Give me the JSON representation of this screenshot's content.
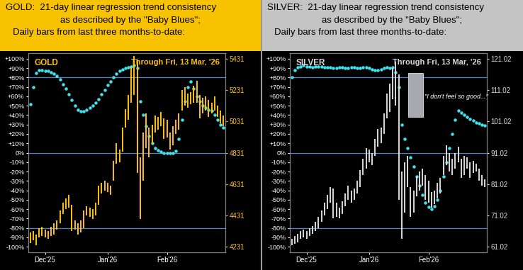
{
  "chart_data": [
    {
      "type": "bar",
      "title": "GOLD:  21-day linear regression trend consistency\nas described by the \"Baby Blues\";\nDaily bars from last three months-to-date:",
      "subtitle": "Through Fri, 13 Mar, '26",
      "annotations": [
        {
          "text": "GOLD"
        }
      ],
      "color": "#F7C300",
      "grid": false,
      "categories": [
        null,
        null,
        null,
        null,
        null,
        "Dec'25",
        null,
        null,
        null,
        null,
        null,
        null,
        null,
        null,
        null,
        null,
        null,
        null,
        null,
        null,
        null,
        null,
        null,
        null,
        null,
        null,
        "Jan'26",
        null,
        null,
        null,
        null,
        null,
        null,
        null,
        null,
        null,
        null,
        null,
        null,
        null,
        null,
        null,
        null,
        null,
        null,
        null,
        "Feb'26",
        null,
        null,
        null,
        null,
        null,
        null,
        null,
        null,
        null,
        null,
        null,
        null,
        null,
        null,
        null,
        null,
        null,
        null,
        null
      ],
      "ylim": [
        -106,
        106
      ],
      "yticks": [
        {
          "value": 100,
          "label": "+100%"
        },
        {
          "value": 90,
          "label": "+90%"
        },
        {
          "value": 80,
          "label": "+80%"
        },
        {
          "value": 70,
          "label": "+70%"
        },
        {
          "value": 60,
          "label": "+60%"
        },
        {
          "value": 50,
          "label": "+50%"
        },
        {
          "value": 40,
          "label": "+40%"
        },
        {
          "value": 30,
          "label": "+30%"
        },
        {
          "value": 20,
          "label": "+20%"
        },
        {
          "value": 10,
          "label": "+10%"
        },
        {
          "value": 0,
          "label": "0%"
        },
        {
          "value": -10,
          "label": "-10%"
        },
        {
          "value": -20,
          "label": "-20%"
        },
        {
          "value": -30,
          "label": "-30%"
        },
        {
          "value": -40,
          "label": "-40%"
        },
        {
          "value": -50,
          "label": "-50%"
        },
        {
          "value": -60,
          "label": "-60%"
        },
        {
          "value": -70,
          "label": "-70%"
        },
        {
          "value": -80,
          "label": "-80%"
        },
        {
          "value": -90,
          "label": "-90%"
        },
        {
          "value": -100,
          "label": "-100%"
        }
      ],
      "y2lim": [
        4195,
        5467
      ],
      "y2ticks": [
        4231,
        4431,
        4631,
        4831,
        5031,
        5231,
        5431
      ],
      "reference_lines": [
        80,
        0,
        -80
      ],
      "series": [
        {
          "type": "range_bar",
          "axis": "y2",
          "color": "#FFC20E",
          "low": [
            4255,
            4270,
            4240,
            4290,
            4300,
            4290,
            4280,
            4300,
            4310,
            4340,
            4380,
            4440,
            4470,
            4480,
            4330,
            4340,
            4310,
            4320,
            4350,
            4430,
            4420,
            4410,
            4430,
            4500,
            4570,
            4590,
            4580,
            4560,
            4650,
            4760,
            4770,
            4840,
            4990,
            5040,
            5150,
            5200,
            4700,
            4410,
            4650,
            4860,
            4800,
            4890,
            4960,
            4980,
            5000,
            4920,
            4930,
            4850,
            4880,
            4950,
            4980,
            5100,
            5130,
            5120,
            5140,
            5150,
            5150,
            5050,
            5080,
            5100,
            5060,
            5080,
            5100,
            5060,
            5020,
            5000
          ],
          "high": [
            4320,
            4330,
            4310,
            4350,
            4360,
            4340,
            4330,
            4360,
            4380,
            4400,
            4460,
            4510,
            4540,
            4560,
            4500,
            4400,
            4380,
            4400,
            4460,
            4490,
            4480,
            4470,
            4510,
            4620,
            4640,
            4650,
            4640,
            4620,
            4780,
            4890,
            4850,
            4990,
            5110,
            5200,
            5380,
            5450,
            5420,
            4800,
            4960,
            5080,
            4990,
            5010,
            5070,
            5060,
            5090,
            5050,
            5040,
            4960,
            5000,
            5040,
            5080,
            5230,
            5250,
            5210,
            5220,
            5260,
            5290,
            5200,
            5180,
            5190,
            5170,
            5150,
            5190,
            5130,
            5100,
            5070
          ]
        },
        {
          "type": "scatter",
          "color": "#3FE3F0",
          "values": [
            52,
            70,
            85,
            88,
            88,
            87,
            87,
            86,
            84,
            82,
            78,
            73,
            68,
            62,
            56,
            50,
            46,
            44,
            44,
            46,
            48,
            50,
            53,
            57,
            62,
            67,
            72,
            76,
            80,
            84,
            87,
            89,
            90,
            91,
            92,
            93,
            90,
            55,
            40,
            28,
            18,
            10,
            5,
            3,
            1,
            0,
            0,
            0,
            0,
            2,
            15,
            35,
            55,
            70,
            76,
            68,
            60,
            55,
            50,
            48,
            46,
            45,
            40,
            35,
            30,
            27
          ]
        }
      ]
    },
    {
      "type": "bar",
      "title": "SILVER:  21-day linear regression trend consistency\nas described by the \"Baby Blues\";\nDaily bars from last three months-to-date:",
      "subtitle": "Through Fri, 13 Mar, '26",
      "annotations": [
        {
          "text": "SILVER"
        },
        {
          "text": "\"I don't feel so good...\""
        }
      ],
      "color": "#C4C4C4",
      "grid": false,
      "categories": [
        null,
        null,
        null,
        null,
        null,
        "Dec'25",
        null,
        null,
        null,
        null,
        null,
        null,
        null,
        null,
        null,
        null,
        null,
        null,
        null,
        null,
        null,
        null,
        null,
        null,
        null,
        null,
        "Jan'26",
        null,
        null,
        null,
        null,
        null,
        null,
        null,
        null,
        null,
        null,
        null,
        null,
        null,
        null,
        null,
        null,
        null,
        null,
        null,
        "Feb'26",
        null,
        null,
        null,
        null,
        null,
        null,
        null,
        null,
        null,
        null,
        null,
        null,
        null,
        null,
        null,
        null,
        null,
        null,
        null
      ],
      "ylim": [
        -106,
        106
      ],
      "yticks": [
        {
          "value": 100,
          "label": "+100%"
        },
        {
          "value": 90,
          "label": "+90%"
        },
        {
          "value": 80,
          "label": "+80%"
        },
        {
          "value": 70,
          "label": "+70%"
        },
        {
          "value": 60,
          "label": "+60%"
        },
        {
          "value": 50,
          "label": "+50%"
        },
        {
          "value": 40,
          "label": "+40%"
        },
        {
          "value": 30,
          "label": "+30%"
        },
        {
          "value": 20,
          "label": "+20%"
        },
        {
          "value": 10,
          "label": "+10%"
        },
        {
          "value": 0,
          "label": "0%"
        },
        {
          "value": -10,
          "label": "-10%"
        },
        {
          "value": -20,
          "label": "-20%"
        },
        {
          "value": -30,
          "label": "-30%"
        },
        {
          "value": -40,
          "label": "-40%"
        },
        {
          "value": -50,
          "label": "-50%"
        },
        {
          "value": -60,
          "label": "-60%"
        },
        {
          "value": -70,
          "label": "-70%"
        },
        {
          "value": -80,
          "label": "-80%"
        },
        {
          "value": -90,
          "label": "-90%"
        },
        {
          "value": -100,
          "label": "-100%"
        }
      ],
      "y2lim": [
        59.22,
        122.82
      ],
      "y2ticks": [
        61.02,
        71.02,
        81.02,
        91.02,
        101.02,
        111.02,
        121.02
      ],
      "reference_lines": [
        80,
        0,
        -80
      ],
      "series": [
        {
          "type": "range_bar",
          "axis": "y2",
          "color": "#D9D9D9",
          "low": [
            61.5,
            62.0,
            62.5,
            63.5,
            64.0,
            63.5,
            64.5,
            65.0,
            66.0,
            67.0,
            69.0,
            71.0,
            73.0,
            75.0,
            70.0,
            70.5,
            70.0,
            71.5,
            74.0,
            76.0,
            75.0,
            76.0,
            78.0,
            80.0,
            84.0,
            86.0,
            88.0,
            87.0,
            90.0,
            93.0,
            94.0,
            97.0,
            102.0,
            104.0,
            108.0,
            106.0,
            76.0,
            63.5,
            72.0,
            80.0,
            70.5,
            72.0,
            77.0,
            79.0,
            80.5,
            76.0,
            75.0,
            73.5,
            74.5,
            76.5,
            78.0,
            84.0,
            87.0,
            85.0,
            84.0,
            86.0,
            88.0,
            83.0,
            84.0,
            86.0,
            83.0,
            84.5,
            85.0,
            82.0,
            80.5,
            80.0
          ],
          "high": [
            63.5,
            64.5,
            65.0,
            66.0,
            66.5,
            66.0,
            67.0,
            67.5,
            69.0,
            70.5,
            72.5,
            75.0,
            77.5,
            80.0,
            79.5,
            75.0,
            73.5,
            75.5,
            78.0,
            80.5,
            79.0,
            79.5,
            82.0,
            85.5,
            89.0,
            92.5,
            92.0,
            91.0,
            95.5,
            98.5,
            99.0,
            103.5,
            110.0,
            113.0,
            118.0,
            120.0,
            116.0,
            85.0,
            88.0,
            90.0,
            80.0,
            79.0,
            83.5,
            85.0,
            86.0,
            84.0,
            82.0,
            78.5,
            79.0,
            81.5,
            83.0,
            90.0,
            93.5,
            91.0,
            89.0,
            91.0,
            93.0,
            89.0,
            90.0,
            89.5,
            88.0,
            88.5,
            87.5,
            86.0,
            84.0,
            82.5
          ]
        },
        {
          "type": "scatter",
          "color": "#3FE3F0",
          "values": [
            80,
            88,
            91,
            92,
            93,
            92,
            92,
            91,
            92,
            92,
            92,
            91,
            91,
            91,
            90,
            90,
            91,
            91,
            90,
            90,
            91,
            91,
            90,
            90,
            91,
            91,
            90,
            89,
            88,
            88,
            89,
            90,
            91,
            90,
            91,
            86,
            70,
            30,
            15,
            5,
            -5,
            -15,
            -25,
            -35,
            -45,
            -53,
            -58,
            -60,
            -57,
            -50,
            -40,
            -25,
            -10,
            5,
            20,
            35,
            45,
            43,
            40,
            38,
            36,
            34,
            32,
            31,
            30,
            29
          ]
        }
      ]
    }
  ]
}
